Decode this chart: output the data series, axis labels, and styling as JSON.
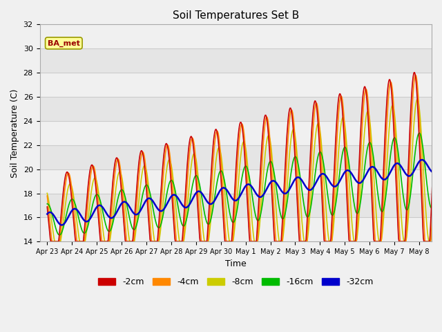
{
  "title": "Soil Temperatures Set B",
  "xlabel": "Time",
  "ylabel": "Soil Temperature (C)",
  "ylim": [
    14,
    32
  ],
  "background_color": "#f0f0f0",
  "series": {
    "-2cm": {
      "color": "#cc0000",
      "lw": 1.2
    },
    "-4cm": {
      "color": "#ff8800",
      "lw": 1.2
    },
    "-8cm": {
      "color": "#cccc00",
      "lw": 1.2
    },
    "-16cm": {
      "color": "#00bb00",
      "lw": 1.2
    },
    "-32cm": {
      "color": "#0000cc",
      "lw": 1.8
    }
  },
  "annotation_text": "BA_met",
  "annotation_color": "#990000",
  "annotation_bg": "#ffff99",
  "annotation_border": "#999900",
  "tick_dates": [
    "Apr 23",
    "Apr 24",
    "Apr 25",
    "Apr 26",
    "Apr 27",
    "Apr 28",
    "Apr 29",
    "Apr 30",
    "May 1",
    "May 2",
    "May 3",
    "May 4",
    "May 5",
    "May 6",
    "May 7",
    "May 8"
  ],
  "grid_color": "#cccccc",
  "legend_items": [
    "-2cm",
    "-4cm",
    "-8cm",
    "-16cm",
    "-32cm"
  ]
}
